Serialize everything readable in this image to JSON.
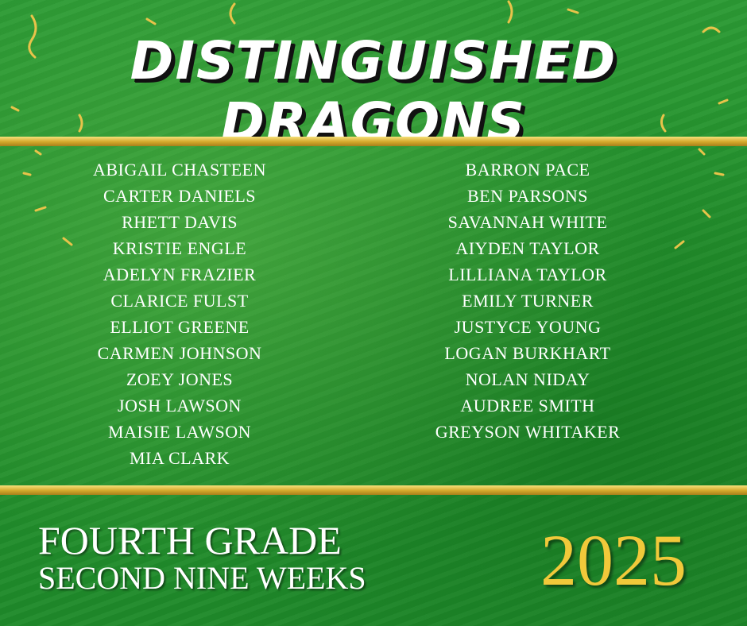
{
  "header": {
    "title": "Distinguished Dragons"
  },
  "names": {
    "left": [
      "ABIGAIL CHASTEEN",
      "CARTER DANIELS",
      "RHETT DAVIS",
      "KRISTIE ENGLE",
      "ADELYN FRAZIER",
      "CLARICE FULST",
      "ELLIOT GREENE",
      "CARMEN JOHNSON",
      "ZOEY JONES",
      "JOSH LAWSON",
      "MAISIE LAWSON",
      "MIA CLARK"
    ],
    "right": [
      "BARRON PACE",
      "BEN PARSONS",
      "SAVANNAH WHITE",
      "AIYDEN TAYLOR",
      "LILLIANA TAYLOR",
      "EMILY TURNER",
      "JUSTYCE YOUNG",
      "LOGAN BURKHART",
      "NOLAN NIDAY",
      "AUDREE SMITH",
      "GREYSON WHITAKER"
    ]
  },
  "footer": {
    "grade": "FOURTH GRADE",
    "period": "SECOND NINE WEEKS",
    "year": "2025"
  }
}
